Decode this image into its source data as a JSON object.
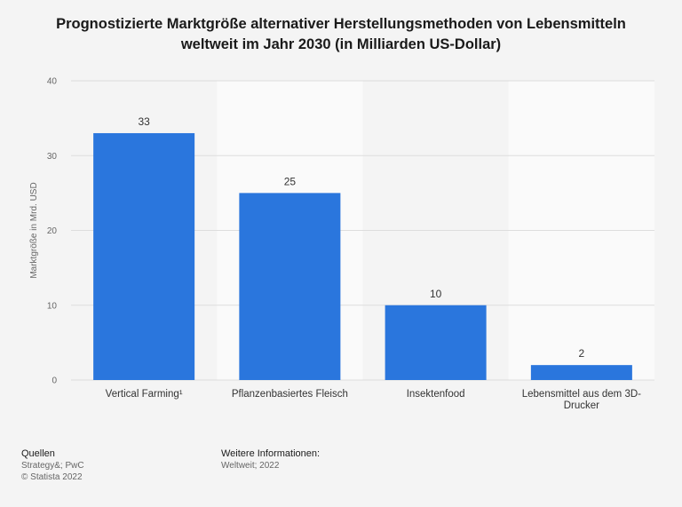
{
  "chart_data": {
    "type": "bar",
    "title_lines": [
      "Prognostizierte Marktgröße alternativer Herstellungsmethoden von Lebensmitteln",
      "weltweit im Jahr 2030 (in Milliarden US-Dollar)"
    ],
    "categories": [
      [
        "Vertical Farming¹"
      ],
      [
        "Pflanzenbasiertes Fleisch"
      ],
      [
        "Insektenfood"
      ],
      [
        "Lebensmittel aus dem 3D-",
        "Drucker"
      ]
    ],
    "values": [
      33,
      25,
      10,
      2
    ],
    "value_labels": [
      "33",
      "25",
      "10",
      "2"
    ],
    "ylabel": "Marktgröße in Mrd. USD",
    "xlabel": "",
    "ylim": [
      0,
      40
    ],
    "yticks": [
      0,
      10,
      20,
      30,
      40
    ],
    "grid": true,
    "bar_color": "#2a76dd",
    "alt_band_color": "#fafafa",
    "grid_color": "#dddddd"
  },
  "footer": {
    "sources_heading": "Quellen",
    "sources": [
      "Strategy&; PwC",
      "© Statista 2022"
    ],
    "info_heading": "Weitere Informationen:",
    "info": [
      "Weltweit; 2022"
    ]
  }
}
